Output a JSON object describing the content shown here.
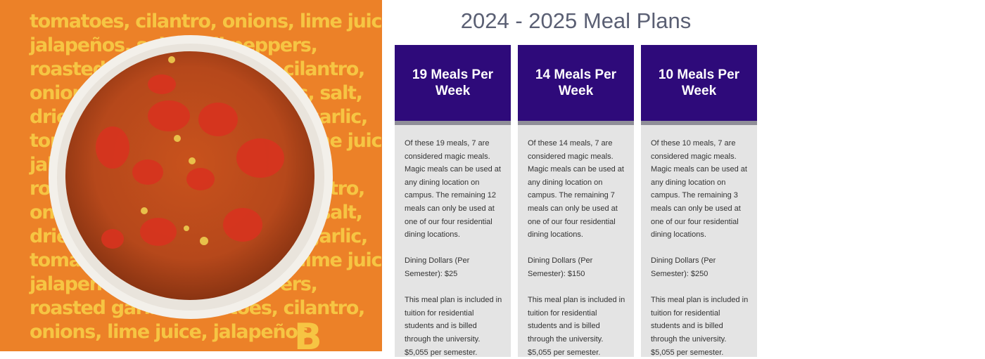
{
  "hero": {
    "lines": [
      "tomatoes, cilantro, onions, lime juice,",
      "jalapeños, salt, chili peppers,",
      "roasted garlic, tomatoes, cilantro,",
      "onions, lime juice, jalapeños, salt,",
      "dried chili peppers, roasted garlic,",
      "tomatoes, cilantro, onions, lime juice,",
      "jalapeños, salt, chili peppers,",
      "roasted garlic, tomatoes, cilantro,",
      "onions, lime juice, jalapeños, salt,",
      "dried chili peppers, roasted garlic,",
      "tomatoes, cilantro, onions, lime juice,",
      "jalapeños, salt, chili peppers,",
      "roasted garlic, tomatoes, cilantro,",
      "onions, lime juice, jalapeños"
    ],
    "logo": "B"
  },
  "page": {
    "title": "2024 - 2025 Meal Plans",
    "plans": [
      {
        "name": "19 Meals Per Week",
        "details": "Of these 19 meals, 7 are considered magic meals. Magic meals can be used at any dining location on campus. The remaining 12 meals can only be used at one of our four residential dining locations.",
        "dining": "Dining Dollars (Per Semester): $25",
        "billing": "This meal plan is included in tuition for residential students and is billed through the university. $5,055 per semester."
      },
      {
        "name": "14 Meals Per Week",
        "details": "Of these 14 meals, 7 are considered magic meals. Magic meals can be used at any dining location on campus. The remaining 7 meals can only be used at one of our four residential dining locations.",
        "dining": "Dining Dollars (Per Semester): $150",
        "billing": "This meal plan is included in tuition for residential students and is billed through the university. $5,055 per semester."
      },
      {
        "name": "10 Meals Per Week",
        "details": "Of these 10 meals, 7 are considered magic meals. Magic meals can be used at any dining location on campus. The remaining 3 meals can only be used at one of our four residential dining locations.",
        "dining": "Dining Dollars (Per Semester): $250",
        "billing": "This meal plan is included in tuition for residential students and is billed through the university. $5,055 per semester."
      }
    ]
  }
}
